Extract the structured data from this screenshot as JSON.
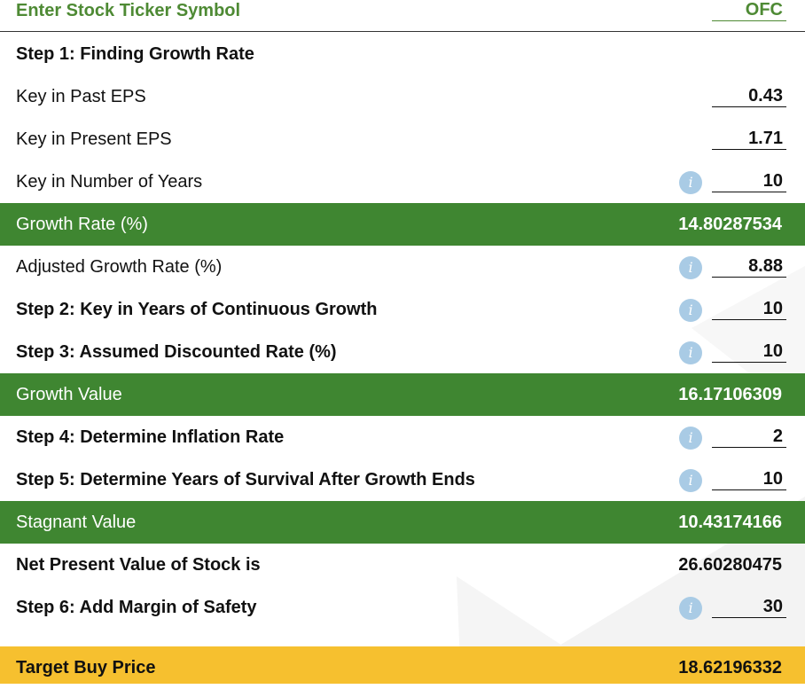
{
  "ticker": {
    "label": "Enter Stock Ticker Symbol",
    "value": "OFC"
  },
  "step1": {
    "title": "Step 1: Finding Growth Rate",
    "past_eps": {
      "label": "Key in Past EPS",
      "value": "0.43"
    },
    "present_eps": {
      "label": "Key in Present EPS",
      "value": "1.71"
    },
    "years": {
      "label": "Key in Number of Years",
      "value": "10"
    }
  },
  "growth_rate": {
    "label": "Growth Rate (%)",
    "value": "14.80287534"
  },
  "adjusted_growth_rate": {
    "label": "Adjusted Growth Rate (%)",
    "value": "8.88"
  },
  "step2": {
    "label": "Step 2: Key in Years of Continuous Growth",
    "value": "10"
  },
  "step3": {
    "label": "Step 3: Assumed Discounted Rate (%)",
    "value": "10"
  },
  "growth_value": {
    "label": "Growth Value",
    "value": "16.17106309"
  },
  "step4": {
    "label": "Step 4: Determine Inflation Rate",
    "value": "2"
  },
  "step5": {
    "label": "Step 5: Determine Years of Survival After Growth Ends",
    "value": "10"
  },
  "stagnant_value": {
    "label": "Stagnant Value",
    "value": "10.43174166"
  },
  "npv": {
    "label": "Net Present Value of Stock is",
    "value": "26.60280475"
  },
  "step6": {
    "label": "Step 6: Add Margin of Safety",
    "value": "30"
  },
  "target_buy_price": {
    "label": "Target Buy Price",
    "value": "18.62196332"
  },
  "info_icon_glyph": "i",
  "colors": {
    "green_band": "#3f8631",
    "header_text": "#4e8a34",
    "yellow_band": "#f6c02f",
    "info_icon": "#a9cbe5"
  }
}
